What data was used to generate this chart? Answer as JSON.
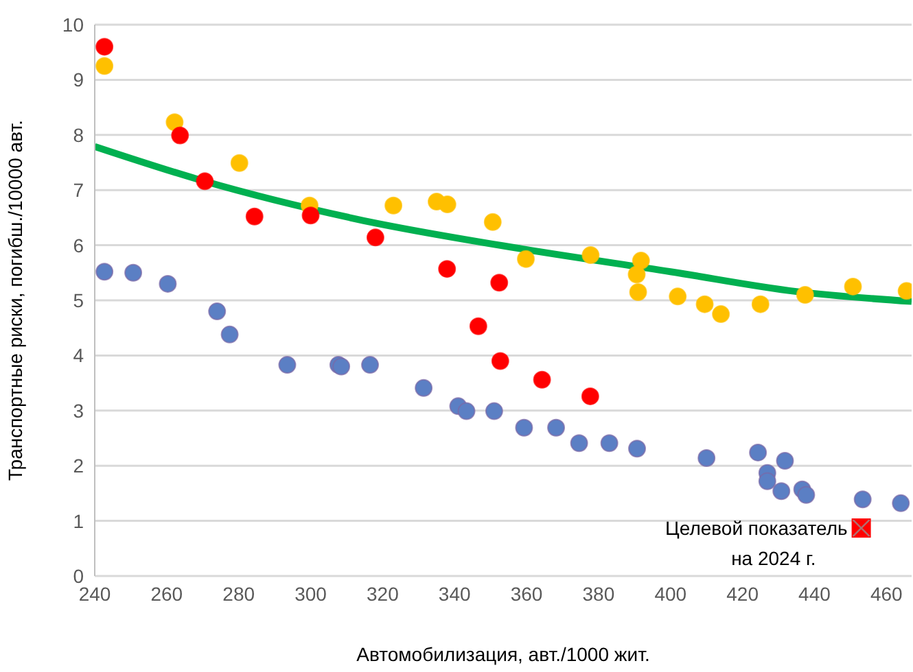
{
  "chart_data": {
    "type": "scatter",
    "xlabel": "Автомобилизация, авт./1000 жит.",
    "ylabel": "Транспортные риски, погибш./10000 авт.",
    "xlim": [
      240,
      467
    ],
    "ylim": [
      0,
      10
    ],
    "xticks": [
      240,
      260,
      280,
      300,
      320,
      340,
      360,
      380,
      400,
      420,
      440,
      460
    ],
    "yticks": [
      0,
      1,
      2,
      3,
      4,
      5,
      6,
      7,
      8,
      9,
      10
    ],
    "grid": "y",
    "marker": "circle",
    "series": [
      {
        "color": "#ffc000",
        "x": [
          242.7,
          262.2,
          280.2,
          299.7,
          323,
          335,
          338,
          350.6,
          359.8,
          377.8,
          391.8,
          390.6,
          391,
          402,
          409.5,
          414,
          425,
          437.4,
          450.7,
          465.6
        ],
        "values": [
          9.25,
          8.23,
          7.49,
          6.72,
          6.72,
          6.79,
          6.74,
          6.42,
          5.75,
          5.82,
          5.72,
          5.47,
          5.15,
          5.07,
          4.93,
          4.75,
          4.93,
          5.1,
          5.25,
          5.17
        ]
      },
      {
        "color": "#ff0000",
        "x": [
          242.7,
          263.7,
          270.6,
          284.4,
          300,
          318,
          337.9,
          352.4,
          346.6,
          352.7,
          364.3,
          377.7
        ],
        "values": [
          9.6,
          7.99,
          7.16,
          6.52,
          6.54,
          6.14,
          5.57,
          5.32,
          4.53,
          3.9,
          3.56,
          3.26
        ]
      },
      {
        "color": "#5b7fc4",
        "x": [
          242.7,
          250.7,
          260.3,
          274,
          277.5,
          293.5,
          307.7,
          308.5,
          316.5,
          331.4,
          341,
          343.3,
          351,
          359.3,
          368.2,
          374.6,
          383,
          390.7,
          410,
          424.3,
          426.9,
          426.9,
          430.8,
          431.8,
          436.6,
          437.7,
          453.4,
          464
        ],
        "values": [
          5.52,
          5.5,
          5.3,
          4.8,
          4.38,
          3.83,
          3.83,
          3.8,
          3.83,
          3.41,
          3.08,
          2.99,
          2.99,
          2.69,
          2.69,
          2.41,
          2.41,
          2.31,
          2.14,
          2.24,
          1.87,
          1.72,
          1.54,
          2.09,
          1.57,
          1.47,
          1.39,
          1.32
        ]
      },
      {
        "type": "line",
        "color": "#00b050",
        "marker": "none",
        "x": [
          240,
          270,
          313,
          359,
          400,
          435,
          467
        ],
        "values": [
          7.79,
          7.17,
          6.47,
          5.93,
          5.52,
          5.16,
          4.98
        ]
      },
      {
        "color": "#ff0000",
        "marker": "square",
        "x": [
          453
        ],
        "values": [
          0.87
        ]
      }
    ],
    "annotations": [
      {
        "text": "Целевой показатель\nна 2024 г.",
        "x": 453,
        "y": 0.87
      }
    ]
  }
}
